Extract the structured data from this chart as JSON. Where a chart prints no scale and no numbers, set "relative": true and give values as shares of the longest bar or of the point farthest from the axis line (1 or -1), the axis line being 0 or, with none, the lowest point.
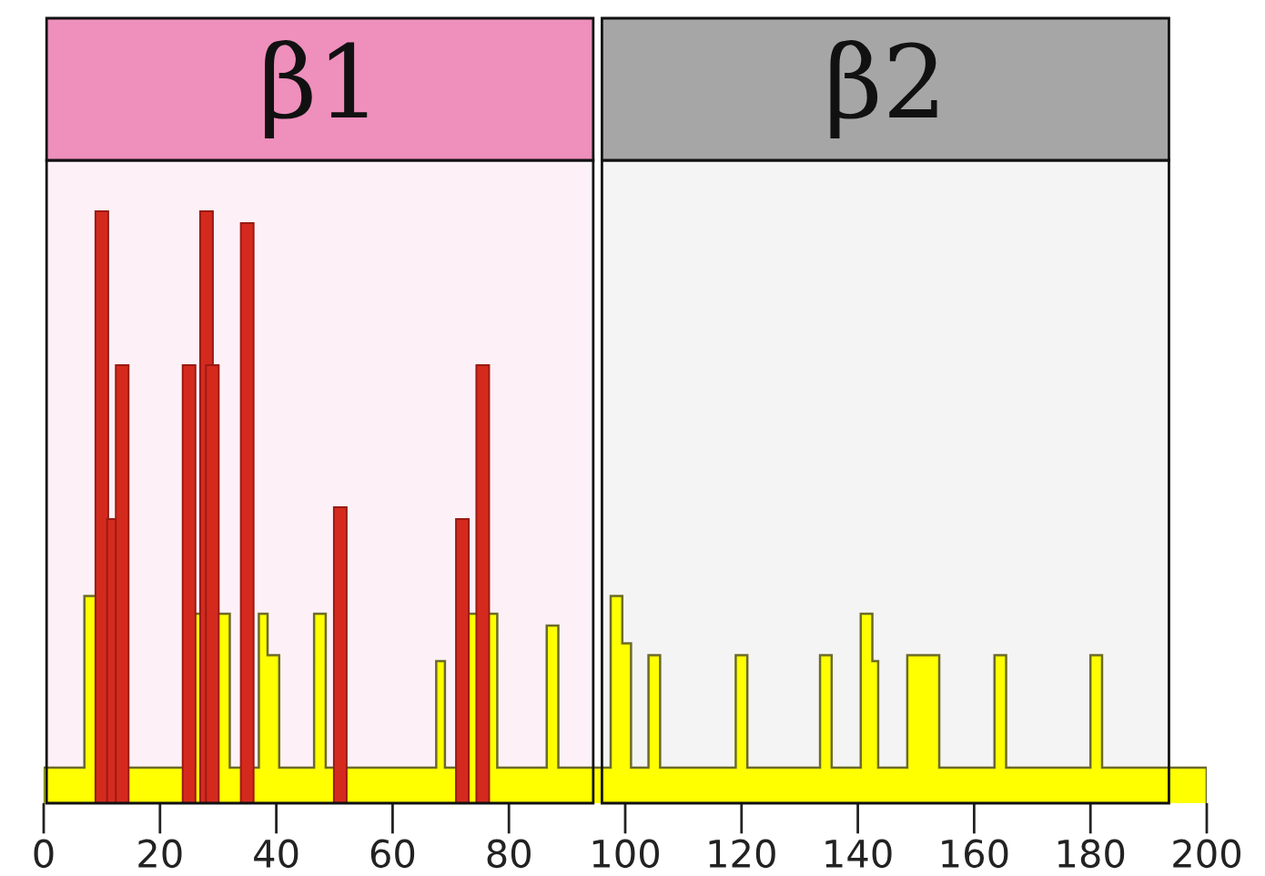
{
  "chart_data": {
    "type": "bar",
    "relative": true,
    "xlim": [
      0,
      200
    ],
    "xticks": [
      0,
      20,
      40,
      60,
      80,
      100,
      120,
      140,
      160,
      180,
      200
    ],
    "grid": false,
    "bands": [
      {
        "axis": "x",
        "from": 0.5,
        "to": 94.5,
        "label": "β1",
        "color": "#ee8fbc"
      },
      {
        "axis": "x",
        "from": 96,
        "to": 193.5,
        "label": "β2",
        "color": "#a6a6a6"
      }
    ],
    "series": [
      {
        "type": "histogram",
        "color": "#ffff00",
        "bins": [
          0,
          7,
          11,
          26,
          32,
          37,
          38.5,
          40.5,
          46.5,
          48.5,
          67.5,
          69,
          73,
          78,
          86.5,
          88.5,
          97.5,
          99.5,
          101,
          104,
          106,
          119,
          121,
          133.5,
          135.5,
          140.5,
          142.5,
          143.5,
          148.5,
          154,
          163.5,
          165.5,
          180,
          182,
          200
        ],
        "values": [
          0.06,
          0.35,
          0.06,
          0.32,
          0.06,
          0.32,
          0.25,
          0.06,
          0.32,
          0.06,
          0.24,
          0.06,
          0.32,
          0.06,
          0.3,
          0.06,
          0.35,
          0.27,
          0.06,
          0.25,
          0.06,
          0.25,
          0.06,
          0.25,
          0.06,
          0.32,
          0.24,
          0.06,
          0.25,
          0.06,
          0.25,
          0.06,
          0.25,
          0.06
        ]
      },
      {
        "color": "#d42a1e",
        "x": [
          10,
          12,
          13.5,
          25,
          28,
          29,
          35,
          51,
          72,
          75.5
        ],
        "values": [
          1.0,
          0.48,
          0.74,
          0.74,
          1.0,
          0.74,
          0.98,
          0.5,
          0.48,
          0.74
        ]
      }
    ]
  }
}
